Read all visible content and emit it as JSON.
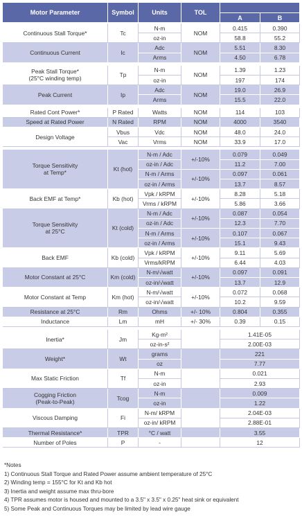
{
  "header": {
    "columns": [
      "Motor Parameter",
      "Symbol",
      "Units",
      "TOL"
    ],
    "sub": [
      "A",
      "B"
    ]
  },
  "sections": [
    {
      "rows": [
        {
          "parameter": [
            "Continuous Stall Torque*"
          ],
          "symbol": [
            "Tc"
          ],
          "units": [
            "N-m",
            "oz-in"
          ],
          "tol": [
            "NOM"
          ],
          "a": [
            "0.415",
            "58.8"
          ],
          "b": [
            "0.390",
            "55.2"
          ]
        },
        {
          "parameter": [
            "Continuous Current"
          ],
          "symbol": [
            "Ic"
          ],
          "units": [
            "Adc",
            "Arms"
          ],
          "tol": [
            "NOM"
          ],
          "a": [
            "5.51",
            "4.50"
          ],
          "b": [
            "8.30",
            "6.78"
          ]
        }
      ]
    },
    {
      "rows": [
        {
          "parameter": [
            "Peak Stall Torque*",
            "(25°C winding temp)"
          ],
          "symbol": [
            "Tp"
          ],
          "units": [
            "N-m",
            "oz-in"
          ],
          "tol": [
            "NOM"
          ],
          "a": [
            "1.39",
            "197"
          ],
          "b": [
            "1.23",
            "174"
          ]
        },
        {
          "parameter": [
            "Peak Current"
          ],
          "symbol": [
            "Ip"
          ],
          "units": [
            "Adc",
            "Arms"
          ],
          "tol": [
            "NOM"
          ],
          "a": [
            "19.0",
            "15.5"
          ],
          "b": [
            "26.9",
            "22.0"
          ]
        }
      ]
    },
    {
      "rows": [
        {
          "parameter": [
            "Rated Cont Power*"
          ],
          "symbol": [
            "P Rated"
          ],
          "units": [
            "Watts"
          ],
          "tol": [
            "NOM"
          ],
          "a": [
            "114"
          ],
          "b": [
            "103"
          ]
        },
        {
          "parameter": [
            "Speed at Rated Power"
          ],
          "symbol": [
            "N Rated"
          ],
          "units": [
            "RPM"
          ],
          "tol": [
            "NOM"
          ],
          "a": [
            "4000"
          ],
          "b": [
            "3540"
          ]
        },
        {
          "parameter": [
            "Design Voltage"
          ],
          "symbol": [
            "Vbus",
            "Vac"
          ],
          "units": [
            "Vdc",
            "Vrms"
          ],
          "tol": [
            "NOM",
            "NOM"
          ],
          "a": [
            "48.0",
            "33.9"
          ],
          "b": [
            "24.0",
            "17.0"
          ]
        }
      ]
    },
    {
      "rows": [
        {
          "parameter": [
            "Torque Sensitivity",
            "at Temp*"
          ],
          "symbol": [
            "Kt (hot)"
          ],
          "units": [
            "N-m / Adc",
            "oz-in / Adc",
            "N-m / Arms",
            "oz-in / Arms"
          ],
          "tol": [
            "+/-10%",
            "+/-10%"
          ],
          "a": [
            "0.079",
            "11.2",
            "0.097",
            "13.7"
          ],
          "b": [
            "0.049",
            "7.00",
            "0.061",
            "8.57"
          ]
        },
        {
          "parameter": [
            "Back EMF at Temp*"
          ],
          "symbol": [
            "Kb (hot)"
          ],
          "units": [
            "Vpk / kRPM",
            "Vrms / kRPM"
          ],
          "tol": [
            "+/-10%"
          ],
          "a": [
            "8.28",
            "5.86"
          ],
          "b": [
            "5.18",
            "3.66"
          ]
        },
        {
          "parameter": [
            "Torque Sensitivity",
            "at 25°C"
          ],
          "symbol": [
            "Kt (cold)"
          ],
          "units": [
            "N-m / Adc",
            "oz-in / Adc",
            "N-m / Arms",
            "oz-in / Arms"
          ],
          "tol": [
            "+/-10%",
            "+/-10%"
          ],
          "a": [
            "0.087",
            "12.3",
            "0.107",
            "15.1"
          ],
          "b": [
            "0.054",
            "7.70",
            "0.067",
            "9.43"
          ]
        },
        {
          "parameter": [
            "Back EMF"
          ],
          "symbol": [
            "Kb (cold)"
          ],
          "units": [
            "Vpk / kRPM",
            "Vrms/kRPM"
          ],
          "tol": [
            "+/-10%"
          ],
          "a": [
            "9.11",
            "6.44"
          ],
          "b": [
            "5.69",
            "4.03"
          ]
        },
        {
          "parameter": [
            "Motor Constant at 25°C"
          ],
          "symbol": [
            "Km (cold)"
          ],
          "units": [
            "N-m/√watt",
            "oz-in/√watt"
          ],
          "tol": [
            "+/-10%"
          ],
          "a": [
            "0.097",
            "13.7"
          ],
          "b": [
            "0.091",
            "12.9"
          ]
        },
        {
          "parameter": [
            "Motor Constant at Temp"
          ],
          "symbol": [
            "Km (hot)"
          ],
          "units": [
            "N-m/√watt",
            "oz-in/√watt"
          ],
          "tol": [
            "+/-10%"
          ],
          "a": [
            "0.072",
            "10.2"
          ],
          "b": [
            "0.068",
            "9.59"
          ]
        },
        {
          "parameter": [
            "Resistance at 25°C"
          ],
          "symbol": [
            "Rm"
          ],
          "units": [
            "Ohms"
          ],
          "tol": [
            "+/- 10%"
          ],
          "a": [
            "0.804"
          ],
          "b": [
            "0.355"
          ]
        },
        {
          "parameter": [
            "Inductance"
          ],
          "symbol": [
            "Lm"
          ],
          "units": [
            "mH"
          ],
          "tol": [
            "+/- 30%"
          ],
          "a": [
            "0.39"
          ],
          "b": [
            "0.15"
          ]
        }
      ]
    },
    {
      "rows": [
        {
          "parameter": [
            "Inertia*"
          ],
          "symbol": [
            "Jm"
          ],
          "units": [
            "Kg-m²",
            "oz-in-s²"
          ],
          "ab": [
            "1.41E-05",
            "2.00E-03"
          ]
        },
        {
          "parameter": [
            "Weight*"
          ],
          "symbol": [
            "Wt"
          ],
          "units": [
            "grams",
            "oz"
          ],
          "ab": [
            "221",
            "7.77"
          ]
        },
        {
          "parameter": [
            "Max Static Friction"
          ],
          "symbol": [
            "Tf"
          ],
          "units": [
            "N-m",
            "oz-in"
          ],
          "ab": [
            "0.021",
            "2.93"
          ]
        },
        {
          "parameter": [
            "Cogging Friction",
            "(Peak-to-Peak)"
          ],
          "symbol": [
            "Tcog"
          ],
          "units": [
            "N-m",
            "oz-in"
          ],
          "ab": [
            "0.009",
            "1.22"
          ]
        },
        {
          "parameter": [
            "Viscous Damping"
          ],
          "symbol": [
            "Fi"
          ],
          "units": [
            "N-m/ kRPM",
            "oz-in/ kRPM"
          ],
          "ab": [
            "2.04E-03",
            "2.88E-01"
          ]
        },
        {
          "parameter": [
            "Thermal Resistance*"
          ],
          "symbol": [
            "TPR"
          ],
          "units": [
            "°C / watt"
          ],
          "ab": [
            "3.55"
          ]
        },
        {
          "parameter": [
            "Number of Poles"
          ],
          "symbol": [
            "P"
          ],
          "units": [
            "-"
          ],
          "ab": [
            "12"
          ]
        }
      ]
    }
  ],
  "notes": {
    "title": "*Notes",
    "lines": [
      "1) Continuous Stall Torque and Rated Power assume ambient temperature of 25°C",
      "2) Winding temp = 155°C for Kt and Kb hot",
      "3) Inertia and weight assume max thru-bore",
      "4) TPR assumes motor is housed and mounted to a 3.5\" x 3.5\" x 0.25\" heat sink or equivalent",
      "5) Some Peak and Continuous Torques may be limited by lead wire gauge"
    ]
  }
}
